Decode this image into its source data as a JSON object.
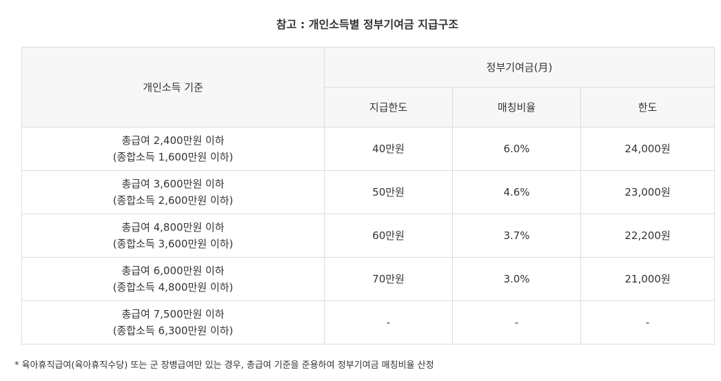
{
  "title": "참고 : 개인소득별 정부기여금 지급구조",
  "table": {
    "header": {
      "income_criteria": "개인소득 기준",
      "gov_contribution": "정부기여금(月)",
      "limit": "지급한도",
      "matching_ratio": "매칭비율",
      "cap": "한도"
    },
    "rows": [
      {
        "criteria_line1": "총급여 2,400만원 이하",
        "criteria_line2": "(종합소득 1,600만원 이하)",
        "limit": "40만원",
        "ratio": "6.0%",
        "cap": "24,000원"
      },
      {
        "criteria_line1": "총급여 3,600만원 이하",
        "criteria_line2": "(종합소득 2,600만원 이하)",
        "limit": "50만원",
        "ratio": "4.6%",
        "cap": "23,000원"
      },
      {
        "criteria_line1": "총급여 4,800만원 이하",
        "criteria_line2": "(종합소득 3,600만원 이하)",
        "limit": "60만원",
        "ratio": "3.7%",
        "cap": "22,200원"
      },
      {
        "criteria_line1": "총급여 6,000만원 이하",
        "criteria_line2": "(종합소득 4,800만원 이하)",
        "limit": "70만원",
        "ratio": "3.0%",
        "cap": "21,000원"
      },
      {
        "criteria_line1": "총급여 7,500만원 이하",
        "criteria_line2": "(종합소득 6,300만원 이하)",
        "limit": "-",
        "ratio": "-",
        "cap": "-"
      }
    ]
  },
  "footnote": "* 육아휴직급여(육아휴직수당) 또는 군 장병급여만 있는 경우, 총급여 기준을 준용하여 정부기여금 매칭비율 산정"
}
